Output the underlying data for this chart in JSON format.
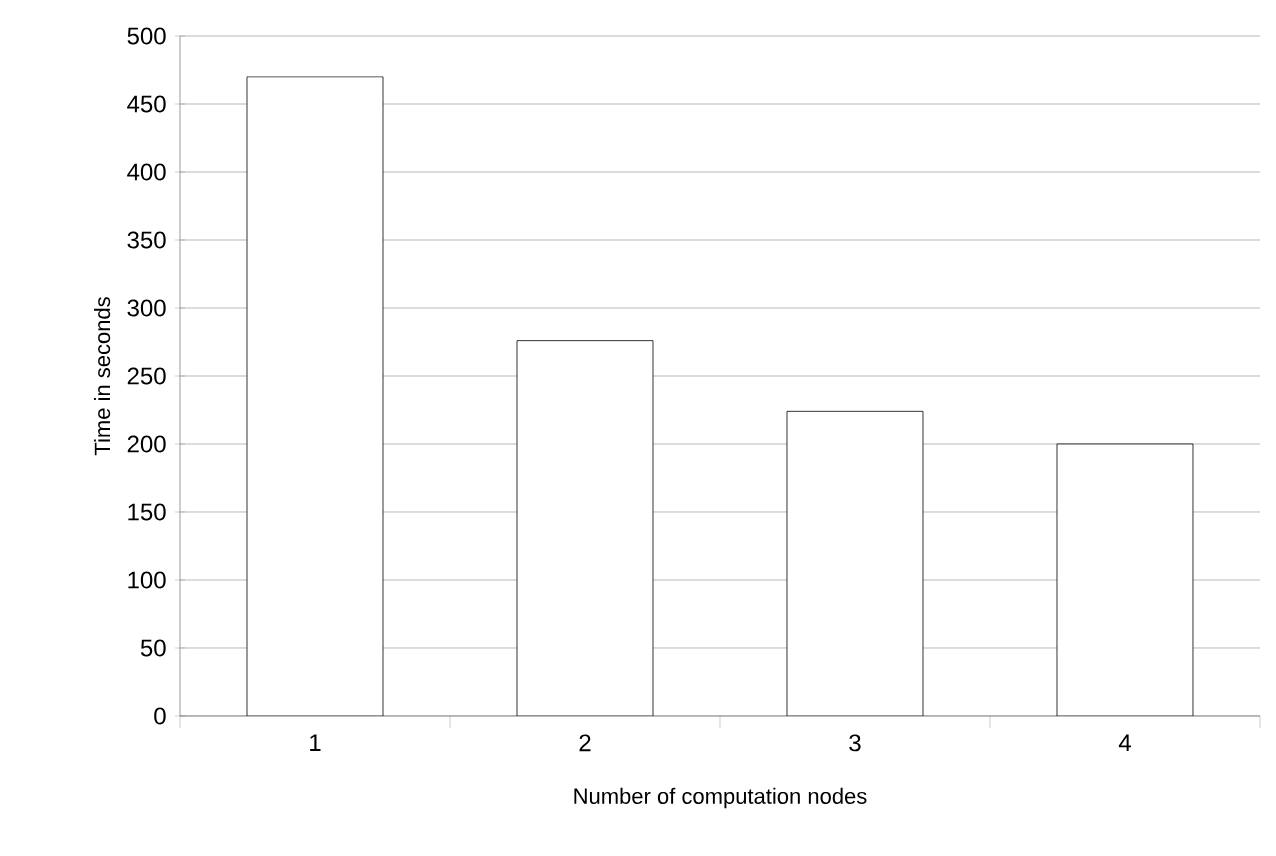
{
  "chart_data": {
    "type": "bar",
    "xlabel": "Number of computation nodes",
    "ylabel": "Time in seconds",
    "categories": [
      "1",
      "2",
      "3",
      "4"
    ],
    "values": [
      470,
      276,
      224,
      200
    ],
    "color": "#ffffff",
    "ylim": [
      0,
      500
    ],
    "yticks": [
      0,
      50,
      100,
      150,
      200,
      250,
      300,
      350,
      400,
      450,
      500
    ],
    "grid": "y"
  }
}
